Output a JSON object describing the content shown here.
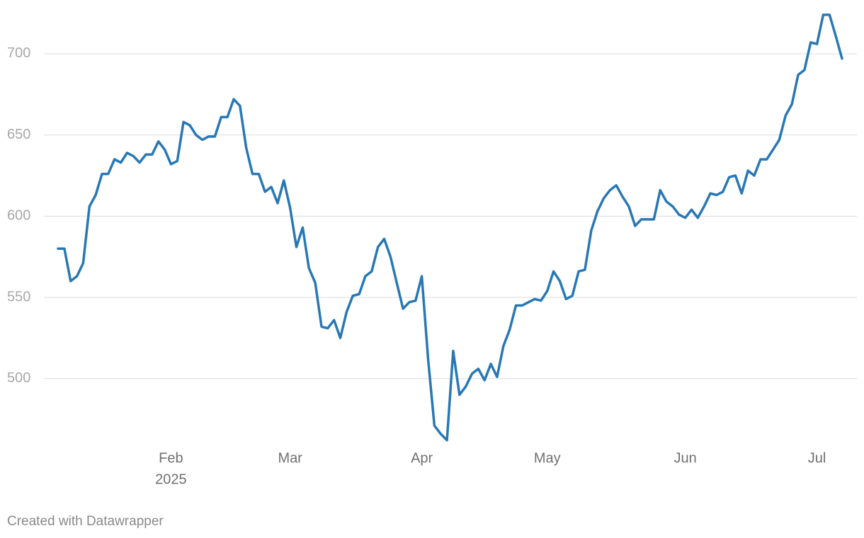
{
  "chart_data": {
    "type": "line",
    "categories": [
      null,
      null,
      null,
      null,
      null,
      null,
      null,
      null,
      null,
      null,
      null,
      null,
      null,
      null,
      null,
      null,
      null,
      null,
      "Feb",
      null,
      null,
      null,
      null,
      null,
      null,
      null,
      null,
      null,
      null,
      null,
      null,
      null,
      null,
      null,
      null,
      null,
      null,
      "Mar",
      null,
      null,
      null,
      null,
      null,
      null,
      null,
      null,
      null,
      null,
      null,
      null,
      null,
      null,
      null,
      null,
      null,
      null,
      null,
      null,
      "Apr",
      null,
      null,
      null,
      null,
      null,
      null,
      null,
      null,
      null,
      null,
      null,
      null,
      null,
      null,
      null,
      null,
      null,
      null,
      null,
      "May",
      null,
      null,
      null,
      null,
      null,
      null,
      null,
      null,
      null,
      null,
      null,
      null,
      null,
      null,
      null,
      null,
      null,
      null,
      null,
      null,
      null,
      "Jun",
      null,
      null,
      null,
      null,
      null,
      null,
      null,
      null,
      null,
      null,
      null,
      null,
      null,
      null,
      null,
      null,
      null,
      null,
      null,
      null,
      "Jul",
      null,
      null,
      null,
      null
    ],
    "year_label": "2025",
    "series": [
      {
        "color": "#2878b5",
        "values": [
          580,
          580,
          560,
          563,
          571,
          606,
          613,
          626,
          626,
          635,
          633,
          639,
          637,
          633,
          638,
          638,
          646,
          641,
          632,
          634,
          658,
          656,
          650,
          647,
          649,
          649,
          661,
          661,
          672,
          668,
          642,
          626,
          626,
          615,
          618,
          608,
          622,
          605,
          581,
          593,
          568,
          559,
          532,
          531,
          536,
          525,
          541,
          551,
          552,
          563,
          566,
          581,
          586,
          575,
          559,
          543,
          547,
          548,
          563,
          512,
          471,
          466,
          462,
          517,
          490,
          495,
          503,
          506,
          499,
          509,
          501,
          520,
          530,
          545,
          545,
          547,
          549,
          548,
          554,
          566,
          560,
          549,
          551,
          566,
          567,
          591,
          603,
          611,
          616,
          619,
          612,
          606,
          594,
          598,
          598,
          598,
          616,
          609,
          606,
          601,
          599,
          604,
          599,
          606,
          614,
          613,
          615,
          624,
          625,
          614,
          628,
          625,
          635,
          635,
          641,
          647,
          662,
          669,
          687,
          690,
          707,
          706,
          724,
          724,
          711,
          697
        ]
      }
    ],
    "ylim": [
      455,
      725
    ],
    "yticks": [
      500,
      550,
      600,
      650,
      700
    ],
    "grid": true
  },
  "footer": "Created with Datawrapper"
}
